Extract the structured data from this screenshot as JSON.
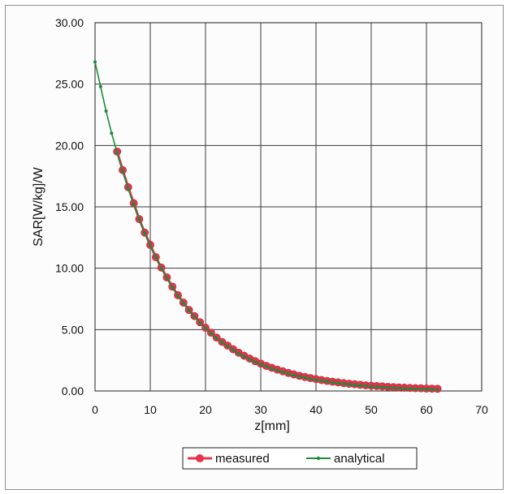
{
  "chart_data": {
    "type": "line",
    "title": "",
    "xlabel": "z[mm]",
    "ylabel": "SAR[W/kg]/W",
    "xlim": [
      0,
      70
    ],
    "ylim": [
      0,
      30
    ],
    "x_ticks": [
      "0",
      "10",
      "20",
      "30",
      "40",
      "50",
      "60",
      "70"
    ],
    "y_ticks": [
      "0.00",
      "5.00",
      "10.00",
      "15.00",
      "20.00",
      "25.00",
      "30.00"
    ],
    "grid": true,
    "legend_position": "bottom",
    "series": [
      {
        "name": "measured",
        "color": "#e8334a",
        "marker": "circle",
        "x": [
          4,
          5,
          6,
          7,
          8,
          9,
          10,
          11,
          12,
          13,
          14,
          15,
          16,
          17,
          18,
          19,
          20,
          21,
          22,
          23,
          24,
          25,
          26,
          27,
          28,
          29,
          30,
          31,
          32,
          33,
          34,
          35,
          36,
          37,
          38,
          39,
          40,
          41,
          42,
          43,
          44,
          45,
          46,
          47,
          48,
          49,
          50,
          51,
          52,
          53,
          54,
          55,
          56,
          57,
          58,
          59,
          60,
          61,
          62
        ],
        "y": [
          19.5,
          18.0,
          16.6,
          15.3,
          14.0,
          12.9,
          11.9,
          10.9,
          10.05,
          9.25,
          8.5,
          7.8,
          7.2,
          6.6,
          6.1,
          5.6,
          5.15,
          4.75,
          4.35,
          4.0,
          3.7,
          3.4,
          3.12,
          2.87,
          2.64,
          2.43,
          2.23,
          2.05,
          1.89,
          1.74,
          1.6,
          1.47,
          1.35,
          1.24,
          1.14,
          1.05,
          0.97,
          0.89,
          0.82,
          0.76,
          0.7,
          0.64,
          0.59,
          0.55,
          0.5,
          0.46,
          0.43,
          0.4,
          0.37,
          0.34,
          0.31,
          0.29,
          0.27,
          0.25,
          0.23,
          0.22,
          0.2,
          0.19,
          0.18
        ]
      },
      {
        "name": "analytical",
        "color": "#1e8a3c",
        "marker": "dot",
        "x": [
          0,
          1,
          2,
          3,
          4,
          5,
          6,
          7,
          8,
          9,
          10,
          11,
          12,
          13,
          14,
          15,
          16,
          17,
          18,
          19,
          20,
          21,
          22,
          23,
          24,
          25,
          26,
          27,
          28,
          29,
          30,
          31,
          32,
          33,
          34,
          35,
          36,
          37,
          38,
          39,
          40,
          41,
          42,
          43,
          44,
          45,
          46,
          47,
          48,
          49,
          50,
          51,
          52,
          53,
          54,
          55,
          56,
          57,
          58,
          59,
          60,
          61,
          62
        ],
        "y": [
          26.8,
          24.8,
          22.8,
          21.0,
          19.4,
          17.9,
          16.5,
          15.2,
          14.0,
          12.85,
          11.85,
          10.9,
          10.0,
          9.2,
          8.45,
          7.75,
          7.15,
          6.55,
          6.05,
          5.55,
          5.1,
          4.7,
          4.3,
          3.95,
          3.65,
          3.35,
          3.05,
          2.8,
          2.58,
          2.37,
          2.17,
          2.0,
          1.83,
          1.68,
          1.54,
          1.41,
          1.3,
          1.19,
          1.09,
          1.0,
          0.92,
          0.84,
          0.77,
          0.7,
          0.64,
          0.59,
          0.54,
          0.49,
          0.45,
          0.41,
          0.37,
          0.34,
          0.31,
          0.28,
          0.26,
          0.23,
          0.21,
          0.19,
          0.17,
          0.15,
          0.14,
          0.12,
          0.11
        ]
      }
    ]
  }
}
